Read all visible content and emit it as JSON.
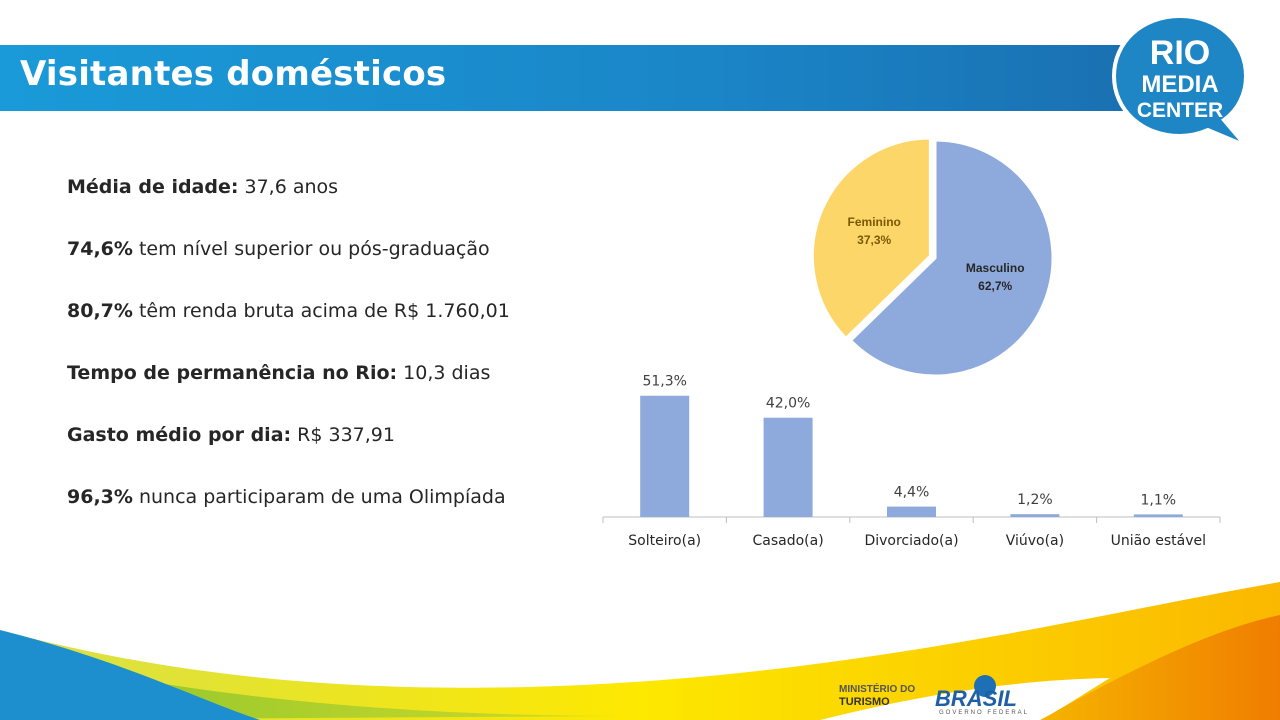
{
  "header": {
    "title": "Visitantes domésticos"
  },
  "logo": {
    "line1": "RIO",
    "line2": "MEDIA",
    "line3": "CENTER"
  },
  "facts": [
    {
      "bold": "Média de idade:",
      "text": " 37,6 anos"
    },
    {
      "bold": "74,6%",
      "text": " tem nível superior ou pós-graduação"
    },
    {
      "bold": "80,7%",
      "text": " têm renda bruta acima de R$ 1.760,01"
    },
    {
      "bold": "Tempo de permanência no Rio:",
      "text": " 10,3 dias"
    },
    {
      "bold": "Gasto médio por dia:",
      "text": " R$ 337,91"
    },
    {
      "bold": "96,3%",
      "text": " nunca participaram de uma Olimpíada"
    }
  ],
  "footer": {
    "ministry_line1": "MINISTÉRIO DO",
    "ministry_line2": "TURISMO",
    "brasil": "BRASIL",
    "brasil_sub": "GOVERNO FEDERAL"
  },
  "chart_data": [
    {
      "type": "pie",
      "title": "",
      "slices": [
        {
          "name": "Masculino",
          "value": 62.7,
          "label": "62,7%",
          "color": "#8eaadc"
        },
        {
          "name": "Feminino",
          "value": 37.3,
          "label": "37,3%",
          "color": "#fdd66a"
        }
      ]
    },
    {
      "type": "bar",
      "title": "",
      "categories": [
        "Solteiro(a)",
        "Casado(a)",
        "Divorciado(a)",
        "Viúvo(a)",
        "União estável"
      ],
      "values": [
        51.3,
        42.0,
        4.4,
        1.2,
        1.1
      ],
      "labels": [
        "51,3%",
        "42,0%",
        "4,4%",
        "1,2%",
        "1,1%"
      ],
      "xlabel": "",
      "ylabel": "",
      "ylim": [
        0,
        55
      ],
      "color": "#8eaadc",
      "grid": false
    }
  ]
}
